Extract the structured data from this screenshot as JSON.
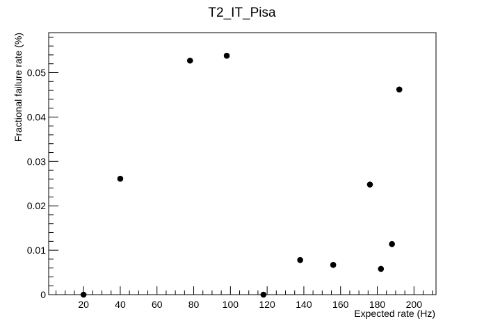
{
  "chart_data": {
    "type": "scatter",
    "title": "T2_IT_Pisa",
    "xlabel": "Expected rate (Hz)",
    "ylabel": "Fractional failure rate (%)",
    "xlim": [
      1,
      212
    ],
    "ylim": [
      0,
      0.059
    ],
    "grid": false,
    "x_ticks": [
      20,
      40,
      60,
      80,
      100,
      120,
      140,
      160,
      180,
      200
    ],
    "y_ticks": [
      0,
      0.01,
      0.02,
      0.03,
      0.04,
      0.05
    ],
    "x_tick_labels": [
      "20",
      "40",
      "60",
      "80",
      "100",
      "120",
      "140",
      "160",
      "180",
      "200"
    ],
    "y_tick_labels": [
      "0",
      "0.01",
      "0.02",
      "0.03",
      "0.04",
      "0.05"
    ],
    "marker_color": "#000000",
    "points": [
      {
        "x": 20,
        "y": 0.0
      },
      {
        "x": 40,
        "y": 0.0261
      },
      {
        "x": 78,
        "y": 0.0527
      },
      {
        "x": 98,
        "y": 0.0538
      },
      {
        "x": 118,
        "y": 0.0
      },
      {
        "x": 138,
        "y": 0.0078
      },
      {
        "x": 156,
        "y": 0.0067
      },
      {
        "x": 176,
        "y": 0.0248
      },
      {
        "x": 182,
        "y": 0.0058
      },
      {
        "x": 188,
        "y": 0.0114
      },
      {
        "x": 192,
        "y": 0.0462
      }
    ]
  }
}
